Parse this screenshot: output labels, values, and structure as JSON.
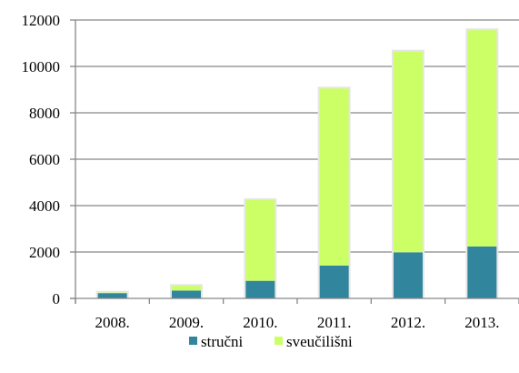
{
  "chart_data": {
    "type": "bar",
    "stacked": true,
    "categories": [
      "2008.",
      "2009.",
      "2010.",
      "2011.",
      "2012.",
      "2013."
    ],
    "series": [
      {
        "name": "stručni",
        "values": [
          230,
          340,
          760,
          1420,
          1990,
          2240
        ],
        "color": "#31859c"
      },
      {
        "name": "sveučilišni",
        "values": [
          20,
          200,
          3480,
          7630,
          8650,
          9320
        ],
        "color": "#ccff66"
      }
    ],
    "ylim": [
      0,
      12000
    ],
    "yticks": [
      "0",
      "2000",
      "4000",
      "6000",
      "8000",
      "10000",
      "12000"
    ],
    "grid": true,
    "legend_position": "bottom"
  }
}
